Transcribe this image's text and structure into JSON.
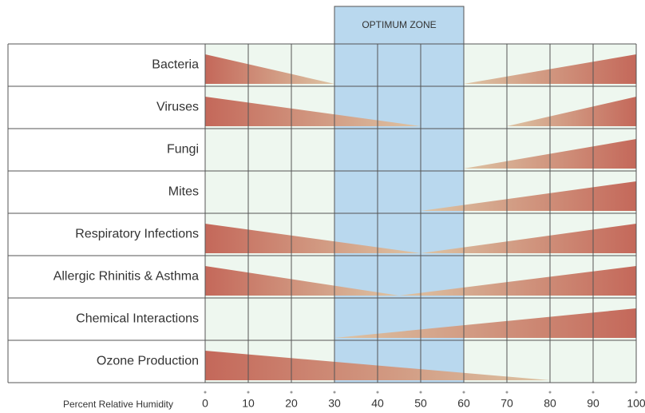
{
  "chart_data": {
    "type": "humidity-zones",
    "annotation": "OPTIMUM ZONE",
    "optimum": [
      30,
      60
    ],
    "xlabel": "Percent Relative Humidity",
    "xlim": [
      0,
      100
    ],
    "xticks": [
      0,
      10,
      20,
      30,
      40,
      50,
      60,
      70,
      80,
      90,
      100
    ],
    "grid": true,
    "colors": [
      "#c4685a",
      "#ddc4a4"
    ],
    "zone_color": "#b9d8ee",
    "background": "#eef7ef",
    "rows": [
      {
        "label": "Bacteria",
        "low": [
          0,
          30
        ],
        "high": [
          60,
          100
        ]
      },
      {
        "label": "Viruses",
        "low": [
          0,
          50
        ],
        "high": [
          70,
          100
        ]
      },
      {
        "label": "Fungi",
        "low": null,
        "high": [
          60,
          100
        ]
      },
      {
        "label": "Mites",
        "low": null,
        "high": [
          50,
          100
        ]
      },
      {
        "label": "Respiratory Infections",
        "low": [
          0,
          50
        ],
        "high": [
          50,
          100
        ]
      },
      {
        "label": "Allergic Rhinitis & Asthma",
        "low": [
          0,
          45
        ],
        "high": [
          45,
          100
        ]
      },
      {
        "label": "Chemical Interactions",
        "low": null,
        "high": [
          30,
          100
        ]
      },
      {
        "label": "Ozone Production",
        "low": [
          0,
          80
        ],
        "high": null
      }
    ]
  }
}
